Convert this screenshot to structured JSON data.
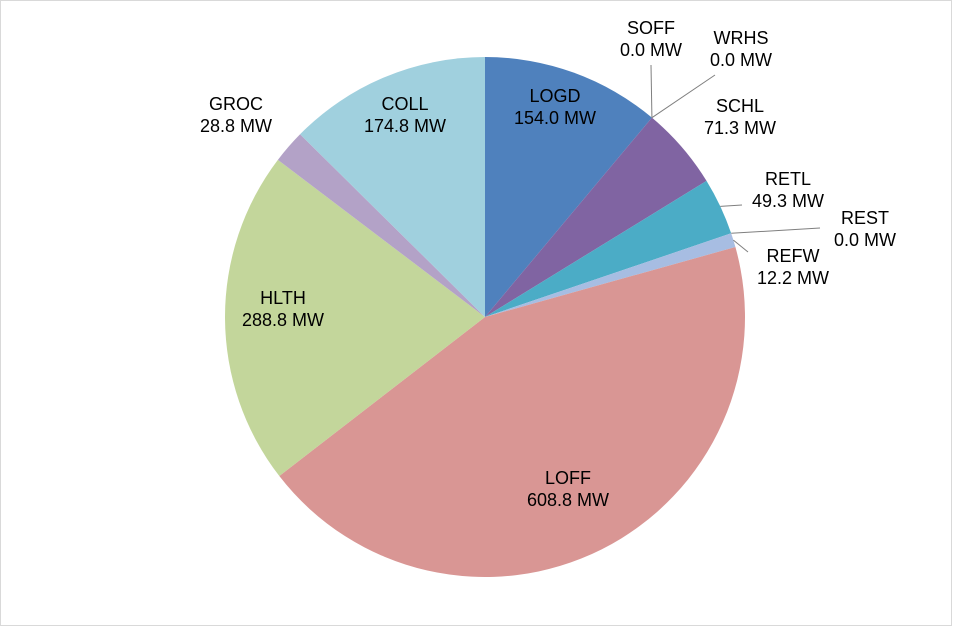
{
  "chart_data": {
    "type": "pie",
    "categories": [
      "LOGD",
      "SOFF",
      "WRHS",
      "SCHL",
      "RETL",
      "REST",
      "REFW",
      "LOFF",
      "HLTH",
      "GROC",
      "COLL"
    ],
    "values": [
      154.0,
      0.0,
      0.0,
      71.3,
      49.3,
      0.0,
      12.2,
      608.8,
      288.8,
      28.8,
      174.8
    ],
    "value_labels": [
      "154.0 MW",
      "0.0 MW",
      "0.0 MW",
      "71.3 MW",
      "49.3 MW",
      "0.0 MW",
      "12.2 MW",
      "608.8 MW",
      "288.8 MW",
      "28.8 MW",
      "174.8 MW"
    ],
    "colors": [
      "#4f81bd",
      "#c0504d",
      "#9bbb59",
      "#8064a2",
      "#4bacc6",
      "#f79646",
      "#a7bde2",
      "#d99694",
      "#c3d69b",
      "#b3a2c7",
      "#a0d0de"
    ]
  }
}
